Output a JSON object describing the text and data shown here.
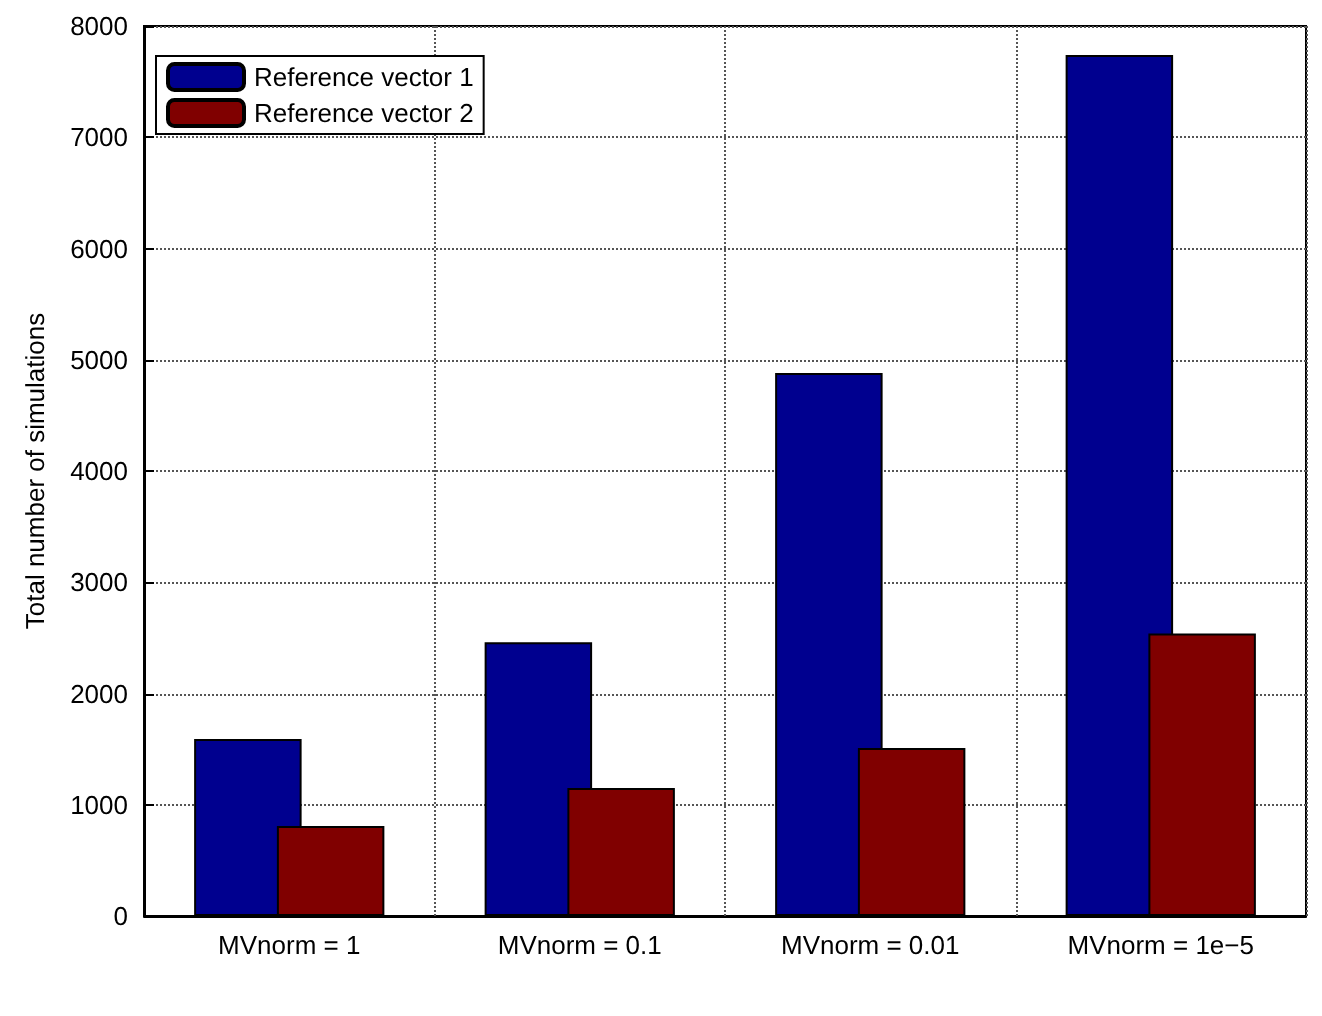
{
  "chart_data": {
    "type": "bar",
    "ylabel": "Total number of simulations",
    "categories": [
      "MVnorm = 1",
      "MVnorm = 0.1",
      "MVnorm = 0.01",
      "MVnorm = 1e−5"
    ],
    "series": [
      {
        "name": "Reference vector 1",
        "color": "#00008f",
        "values": [
          1590,
          2460,
          4880,
          7740
        ]
      },
      {
        "name": "Reference vector 2",
        "color": "#800000",
        "values": [
          810,
          1150,
          1510,
          2540
        ]
      }
    ],
    "ylim": [
      0,
      8000
    ],
    "yticks": [
      0,
      1000,
      2000,
      3000,
      4000,
      5000,
      6000,
      7000,
      8000
    ],
    "grid": true,
    "legend": "top left"
  }
}
